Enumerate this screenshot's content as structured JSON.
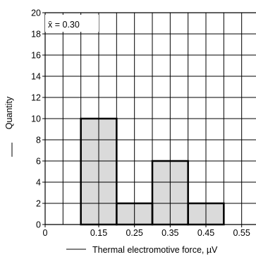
{
  "chart_data": {
    "type": "bar",
    "xlabel": "Thermal electromotive force, µV",
    "ylabel": "Quantity",
    "xlim": [
      0,
      0.6
    ],
    "ylim": [
      0,
      20
    ],
    "x_ticks": [
      0,
      0.15,
      0.25,
      0.35,
      0.45,
      0.55
    ],
    "x_tick_labels": [
      "0",
      "0.15",
      "0.25",
      "0.35",
      "0.45",
      "0.55"
    ],
    "y_ticks": [
      0,
      2,
      4,
      6,
      8,
      10,
      12,
      14,
      16,
      18,
      20
    ],
    "y_tick_labels": [
      "0",
      "2",
      "4",
      "6",
      "8",
      "10",
      "12",
      "14",
      "16",
      "18",
      "20"
    ],
    "grid": true,
    "bins": [
      {
        "start": 0.1,
        "end": 0.2,
        "value": 10
      },
      {
        "start": 0.2,
        "end": 0.3,
        "value": 2
      },
      {
        "start": 0.3,
        "end": 0.4,
        "value": 6
      },
      {
        "start": 0.4,
        "end": 0.5,
        "value": 2
      }
    ],
    "annotation": "x̄ = 0.30",
    "bar_fill": "#d3d3d3",
    "bar_stroke": "#000000"
  }
}
